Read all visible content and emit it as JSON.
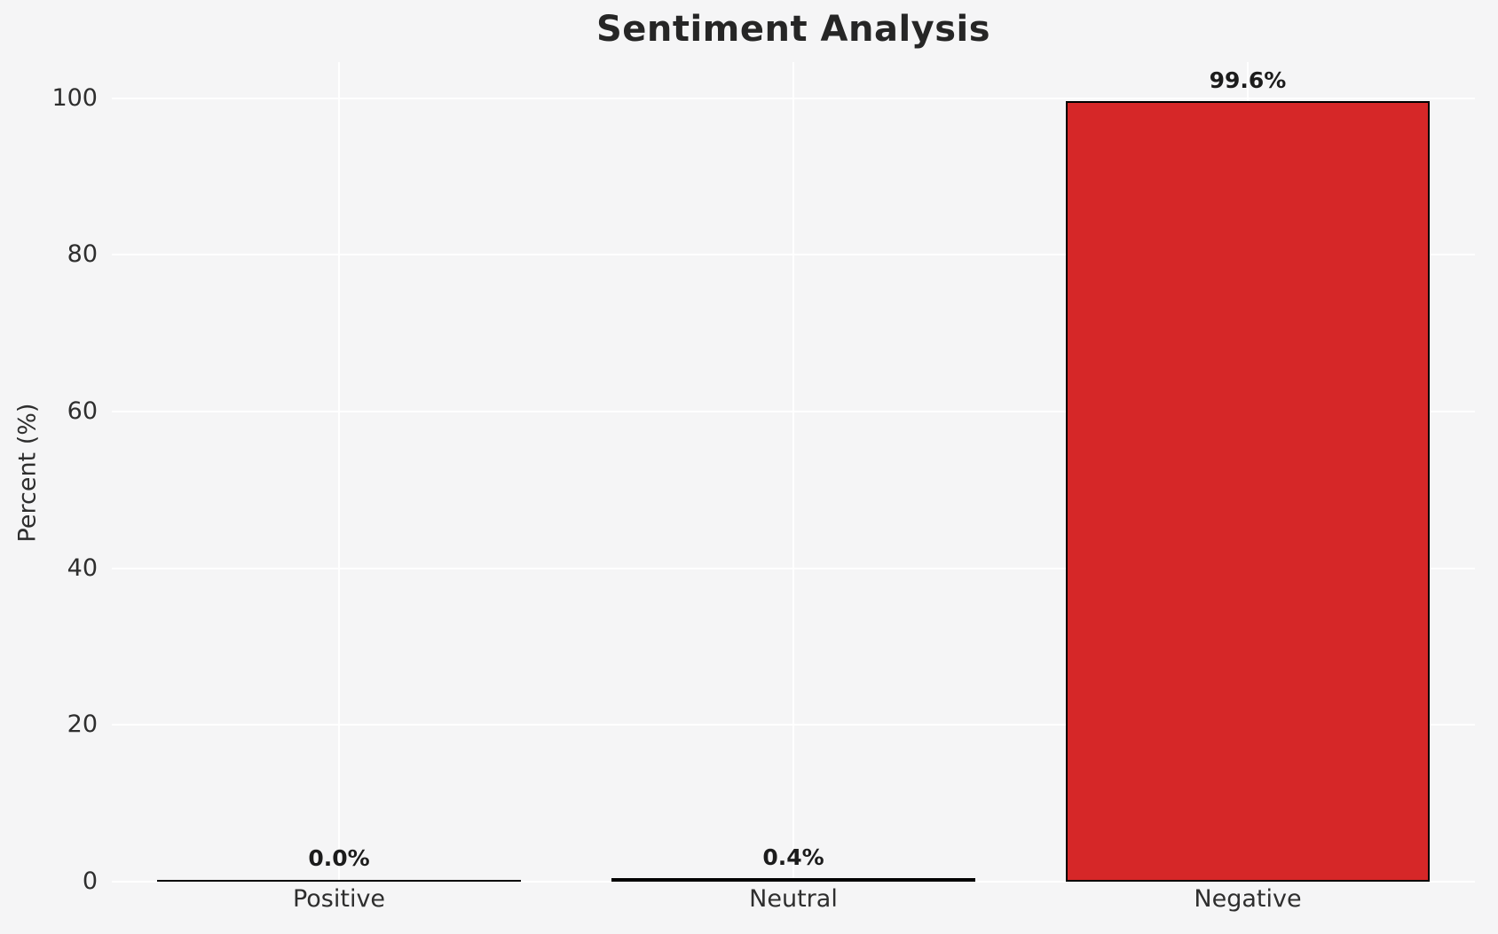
{
  "chart_data": {
    "type": "bar",
    "title": "Sentiment Analysis",
    "xlabel": "",
    "ylabel": "Percent (%)",
    "categories": [
      "Positive",
      "Neutral",
      "Negative"
    ],
    "values": [
      0.0,
      0.4,
      99.6
    ],
    "bar_labels": [
      "0.0%",
      "0.4%",
      "99.6%"
    ],
    "bar_colors": [
      "#d62728",
      "#d62728",
      "#d62728"
    ],
    "edge_color": "#000000",
    "yticks": [
      0,
      20,
      40,
      60,
      80,
      100
    ],
    "ylim": [
      0,
      104.6
    ],
    "grid": true,
    "grid_color": "#ffffff",
    "background_color": "#f5f5f6",
    "legend": "none",
    "bar_width_fraction": 0.8
  }
}
